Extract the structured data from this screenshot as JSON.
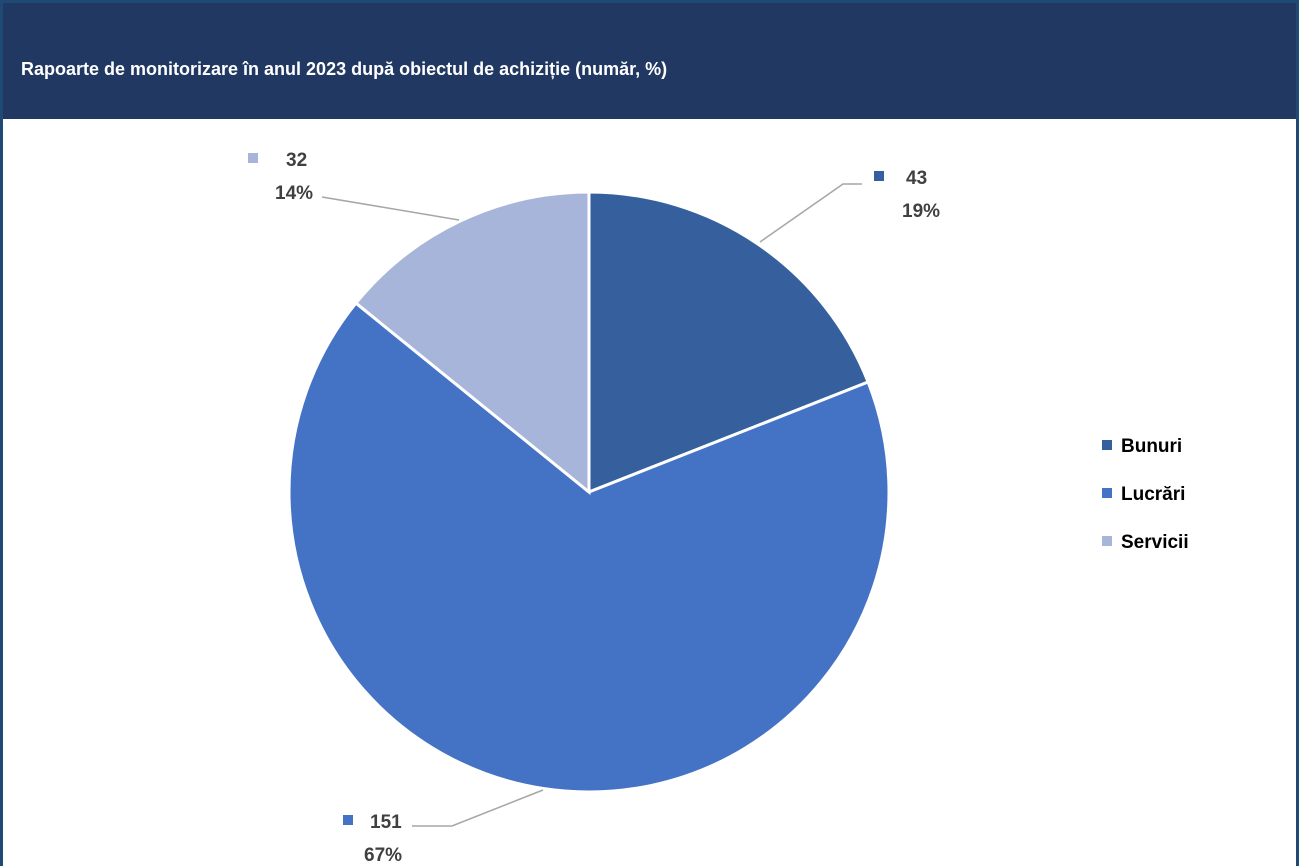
{
  "chart_data": {
    "type": "pie",
    "title": "Rapoarte de monitorizare în anul 2023 după obiectul de achiziție (număr, %)",
    "categories": [
      "Bunuri",
      "Lucrări",
      "Servicii"
    ],
    "values": [
      43,
      151,
      32
    ],
    "percent_labels": [
      "19%",
      "67%",
      "14%"
    ],
    "value_labels": [
      "43",
      "151",
      "32"
    ],
    "colors": [
      "#365f9e",
      "#4472c4",
      "#a7b5da"
    ],
    "legend_position": "right",
    "start_angle": "12 o'clock",
    "direction": "clockwise"
  },
  "theme": {
    "title_bar_color": "#213862",
    "frame_color": "#1f4a73",
    "label_color": "#404040",
    "leader_color": "#a6a6a6"
  }
}
